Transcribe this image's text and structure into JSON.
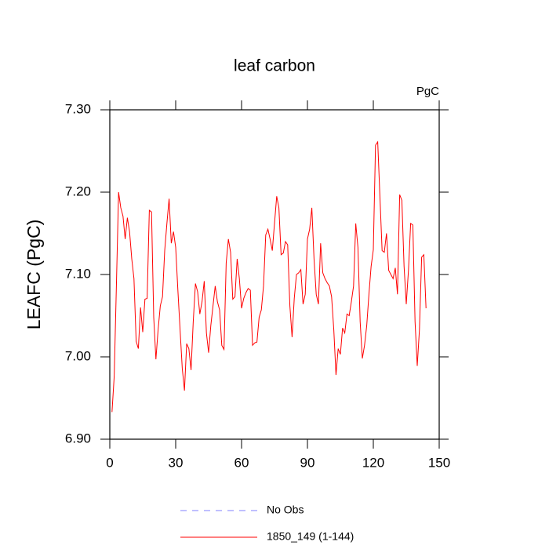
{
  "chart_data": {
    "type": "line",
    "title": "leaf carbon",
    "units": "PgC",
    "y_label": "LEAFC  (PgC)",
    "x": [
      1,
      2,
      3,
      4,
      5,
      6,
      7,
      8,
      9,
      10,
      11,
      12,
      13,
      14,
      15,
      16,
      17,
      18,
      19,
      20,
      21,
      22,
      23,
      24,
      25,
      26,
      27,
      28,
      29,
      30,
      31,
      32,
      33,
      34,
      35,
      36,
      37,
      38,
      39,
      40,
      41,
      42,
      43,
      44,
      45,
      46,
      47,
      48,
      49,
      50,
      51,
      52,
      53,
      54,
      55,
      56,
      57,
      58,
      59,
      60,
      61,
      62,
      63,
      64,
      65,
      66,
      67,
      68,
      69,
      70,
      71,
      72,
      73,
      74,
      75,
      76,
      77,
      78,
      79,
      80,
      81,
      82,
      83,
      84,
      85,
      86,
      87,
      88,
      89,
      90,
      91,
      92,
      93,
      94,
      95,
      96,
      97,
      98,
      99,
      100,
      101,
      102,
      103,
      104,
      105,
      106,
      107,
      108,
      109,
      110,
      111,
      112,
      113,
      114,
      115,
      116,
      117,
      118,
      119,
      120,
      121,
      122,
      123,
      124,
      125,
      126,
      127,
      128,
      129,
      130,
      131,
      132,
      133,
      134,
      135,
      136,
      137,
      138,
      139,
      140,
      141,
      142,
      143,
      144
    ],
    "series": [
      {
        "name": "1850_149 (1-144)",
        "color": "#ff0000",
        "values": [
          6.933,
          6.976,
          7.086,
          7.2,
          7.181,
          7.171,
          7.143,
          7.169,
          7.152,
          7.119,
          7.095,
          7.019,
          7.01,
          7.06,
          7.03,
          7.07,
          7.071,
          7.178,
          7.176,
          7.048,
          6.997,
          7.033,
          7.062,
          7.073,
          7.129,
          7.162,
          7.192,
          7.138,
          7.152,
          7.133,
          7.081,
          7.033,
          6.986,
          6.959,
          7.016,
          7.01,
          6.984,
          7.043,
          7.089,
          7.079,
          7.052,
          7.067,
          7.092,
          7.029,
          7.005,
          7.038,
          7.062,
          7.086,
          7.067,
          7.057,
          7.014,
          7.009,
          7.114,
          7.143,
          7.127,
          7.07,
          7.073,
          7.119,
          7.095,
          7.059,
          7.071,
          7.078,
          7.083,
          7.081,
          7.014,
          7.017,
          7.018,
          7.048,
          7.057,
          7.086,
          7.148,
          7.155,
          7.143,
          7.129,
          7.162,
          7.195,
          7.181,
          7.124,
          7.126,
          7.14,
          7.136,
          7.062,
          7.024,
          7.071,
          7.1,
          7.102,
          7.106,
          7.064,
          7.076,
          7.143,
          7.155,
          7.181,
          7.119,
          7.076,
          7.064,
          7.138,
          7.102,
          7.095,
          7.09,
          7.086,
          7.073,
          7.033,
          6.978,
          7.01,
          7.003,
          7.035,
          7.029,
          7.052,
          7.05,
          7.067,
          7.086,
          7.162,
          7.133,
          7.043,
          6.998,
          7.014,
          7.038,
          7.076,
          7.11,
          7.13,
          7.257,
          7.261,
          7.195,
          7.129,
          7.127,
          7.15,
          7.105,
          7.1,
          7.095,
          7.108,
          7.076,
          7.197,
          7.19,
          7.11,
          7.064,
          7.105,
          7.162,
          7.16,
          7.043,
          6.989,
          7.033,
          7.121,
          7.124,
          7.059
        ]
      }
    ],
    "legend": [
      {
        "name": "No Obs",
        "color": "#8080ff",
        "dashed": true
      },
      {
        "name": "1850_149 (1-144)",
        "color": "#ff0000",
        "dashed": false
      }
    ],
    "xlim": [
      0,
      150
    ],
    "xticks": [
      0,
      30,
      60,
      90,
      120,
      150
    ],
    "ylim": [
      6.9,
      7.3
    ],
    "yticks": [
      {
        "value": 6.9,
        "label": "6.90"
      },
      {
        "value": 7.0,
        "label": "7.00"
      },
      {
        "value": 7.1,
        "label": "7.10"
      },
      {
        "value": 7.2,
        "label": "7.20"
      },
      {
        "value": 7.3,
        "label": "7.30"
      }
    ]
  }
}
